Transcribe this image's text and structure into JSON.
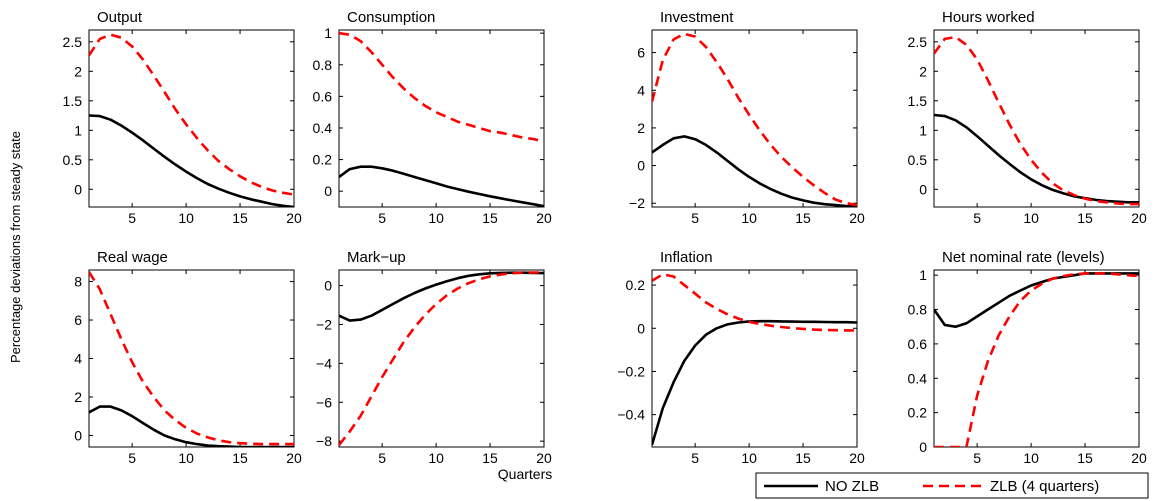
{
  "figure": {
    "ylabel": "Percentage deviations from steady state",
    "xlabel": "Quarters",
    "legend": {
      "placement": "bottom-right",
      "entries": [
        "NO ZLB",
        "ZLB (4 quarters)"
      ]
    }
  },
  "colors": {
    "no_zlb": "#000000",
    "zlb": "#ff0000"
  },
  "chart_data": [
    {
      "type": "line",
      "title": "Output",
      "xlim": [
        1,
        20
      ],
      "ylim": [
        -0.3,
        2.7
      ],
      "xticks": [
        5,
        10,
        15,
        20
      ],
      "yticks": [
        0,
        0.5,
        1,
        1.5,
        2,
        2.5
      ],
      "ytick_labels": [
        "0",
        "0.5",
        "1",
        "1.5",
        "2",
        "2.5"
      ],
      "x": [
        1,
        2,
        3,
        4,
        5,
        6,
        7,
        8,
        9,
        10,
        11,
        12,
        13,
        14,
        15,
        16,
        17,
        18,
        19,
        20
      ],
      "series": [
        {
          "name": "NO ZLB",
          "values": [
            1.25,
            1.24,
            1.18,
            1.08,
            0.96,
            0.83,
            0.69,
            0.55,
            0.42,
            0.3,
            0.19,
            0.09,
            0.01,
            -0.06,
            -0.12,
            -0.17,
            -0.21,
            -0.25,
            -0.28,
            -0.3
          ]
        },
        {
          "name": "ZLB (4 quarters)",
          "values": [
            2.27,
            2.55,
            2.62,
            2.57,
            2.42,
            2.2,
            1.93,
            1.65,
            1.36,
            1.1,
            0.87,
            0.66,
            0.48,
            0.34,
            0.22,
            0.12,
            0.04,
            -0.02,
            -0.06,
            -0.09
          ]
        }
      ]
    },
    {
      "type": "line",
      "title": "Consumption",
      "xlim": [
        1,
        20
      ],
      "ylim": [
        -0.1,
        1.02
      ],
      "xticks": [
        5,
        10,
        15,
        20
      ],
      "yticks": [
        0,
        0.2,
        0.4,
        0.6,
        0.8,
        1
      ],
      "ytick_labels": [
        "0",
        "0.2",
        "0.4",
        "0.6",
        "0.8",
        "1"
      ],
      "x": [
        1,
        2,
        3,
        4,
        5,
        6,
        7,
        8,
        9,
        10,
        11,
        12,
        13,
        14,
        15,
        16,
        17,
        18,
        19,
        20
      ],
      "series": [
        {
          "name": "NO ZLB",
          "values": [
            0.09,
            0.14,
            0.155,
            0.155,
            0.145,
            0.13,
            0.11,
            0.09,
            0.07,
            0.05,
            0.03,
            0.013,
            -0.003,
            -0.018,
            -0.032,
            -0.045,
            -0.058,
            -0.07,
            -0.082,
            -0.095
          ]
        },
        {
          "name": "ZLB (4 quarters)",
          "values": [
            1.0,
            0.99,
            0.95,
            0.88,
            0.8,
            0.72,
            0.65,
            0.59,
            0.54,
            0.5,
            0.47,
            0.44,
            0.42,
            0.4,
            0.38,
            0.37,
            0.355,
            0.34,
            0.33,
            0.315
          ]
        }
      ]
    },
    {
      "type": "line",
      "title": "Investment",
      "xlim": [
        1,
        20
      ],
      "ylim": [
        -2.2,
        7.2
      ],
      "xticks": [
        5,
        10,
        15,
        20
      ],
      "yticks": [
        -2,
        0,
        2,
        4,
        6
      ],
      "ytick_labels": [
        "−2",
        "0",
        "2",
        "4",
        "6"
      ],
      "x": [
        1,
        2,
        3,
        4,
        5,
        6,
        7,
        8,
        9,
        10,
        11,
        12,
        13,
        14,
        15,
        16,
        17,
        18,
        19,
        20
      ],
      "series": [
        {
          "name": "NO ZLB",
          "values": [
            0.7,
            1.1,
            1.45,
            1.55,
            1.4,
            1.1,
            0.7,
            0.25,
            -0.2,
            -0.6,
            -0.95,
            -1.25,
            -1.5,
            -1.7,
            -1.85,
            -1.97,
            -2.05,
            -2.1,
            -2.15,
            -2.18
          ]
        },
        {
          "name": "ZLB (4 quarters)",
          "values": [
            3.4,
            5.6,
            6.7,
            7.0,
            6.85,
            6.3,
            5.5,
            4.6,
            3.6,
            2.7,
            1.85,
            1.1,
            0.45,
            -0.1,
            -0.6,
            -1.05,
            -1.45,
            -1.8,
            -2.0,
            -2.1
          ]
        }
      ]
    },
    {
      "type": "line",
      "title": "Hours worked",
      "xlim": [
        1,
        20
      ],
      "ylim": [
        -0.3,
        2.7
      ],
      "xticks": [
        5,
        10,
        15,
        20
      ],
      "yticks": [
        0,
        0.5,
        1,
        1.5,
        2,
        2.5
      ],
      "ytick_labels": [
        "0",
        "0.5",
        "1",
        "1.5",
        "2",
        "2.5"
      ],
      "x": [
        1,
        2,
        3,
        4,
        5,
        6,
        7,
        8,
        9,
        10,
        11,
        12,
        13,
        14,
        15,
        16,
        17,
        18,
        19,
        20
      ],
      "series": [
        {
          "name": "NO ZLB",
          "values": [
            1.26,
            1.24,
            1.17,
            1.05,
            0.9,
            0.74,
            0.58,
            0.43,
            0.29,
            0.17,
            0.07,
            -0.01,
            -0.07,
            -0.12,
            -0.15,
            -0.18,
            -0.2,
            -0.21,
            -0.22,
            -0.22
          ]
        },
        {
          "name": "ZLB (4 quarters)",
          "values": [
            2.3,
            2.55,
            2.58,
            2.45,
            2.2,
            1.85,
            1.47,
            1.1,
            0.77,
            0.5,
            0.28,
            0.1,
            -0.02,
            -0.1,
            -0.16,
            -0.2,
            -0.22,
            -0.24,
            -0.25,
            -0.25
          ]
        }
      ]
    },
    {
      "type": "line",
      "title": "Real wage",
      "xlim": [
        1,
        20
      ],
      "ylim": [
        -0.6,
        8.6
      ],
      "xticks": [
        5,
        10,
        15,
        20
      ],
      "yticks": [
        0,
        2,
        4,
        6,
        8
      ],
      "ytick_labels": [
        "0",
        "2",
        "4",
        "6",
        "8"
      ],
      "x": [
        1,
        2,
        3,
        4,
        5,
        6,
        7,
        8,
        9,
        10,
        11,
        12,
        13,
        14,
        15,
        16,
        17,
        18,
        19,
        20
      ],
      "series": [
        {
          "name": "NO ZLB",
          "values": [
            1.2,
            1.5,
            1.5,
            1.3,
            1.0,
            0.65,
            0.3,
            0.0,
            -0.2,
            -0.35,
            -0.45,
            -0.52,
            -0.56,
            -0.58,
            -0.6,
            -0.6,
            -0.6,
            -0.6,
            -0.6,
            -0.6
          ]
        },
        {
          "name": "ZLB (4 quarters)",
          "values": [
            8.5,
            7.6,
            6.3,
            5.0,
            3.8,
            2.8,
            2.0,
            1.3,
            0.8,
            0.4,
            0.1,
            -0.1,
            -0.25,
            -0.35,
            -0.4,
            -0.43,
            -0.45,
            -0.45,
            -0.45,
            -0.45
          ]
        }
      ]
    },
    {
      "type": "line",
      "title": "Mark−up",
      "xlim": [
        1,
        20
      ],
      "ylim": [
        -8.3,
        0.8
      ],
      "xticks": [
        5,
        10,
        15,
        20
      ],
      "yticks": [
        -8,
        -6,
        -4,
        -2,
        0
      ],
      "ytick_labels": [
        "−8",
        "−6",
        "−4",
        "−2",
        "0"
      ],
      "x": [
        1,
        2,
        3,
        4,
        5,
        6,
        7,
        8,
        9,
        10,
        11,
        12,
        13,
        14,
        15,
        16,
        17,
        18,
        19,
        20
      ],
      "series": [
        {
          "name": "NO ZLB",
          "values": [
            -1.55,
            -1.8,
            -1.75,
            -1.55,
            -1.25,
            -0.95,
            -0.65,
            -0.38,
            -0.15,
            0.05,
            0.22,
            0.38,
            0.5,
            0.58,
            0.63,
            0.65,
            0.66,
            0.66,
            0.65,
            0.64
          ]
        },
        {
          "name": "ZLB (4 quarters)",
          "values": [
            -8.2,
            -7.5,
            -6.7,
            -5.7,
            -4.7,
            -3.8,
            -2.9,
            -2.15,
            -1.5,
            -0.95,
            -0.5,
            -0.15,
            0.12,
            0.32,
            0.47,
            0.57,
            0.63,
            0.66,
            0.67,
            0.67
          ]
        }
      ]
    },
    {
      "type": "line",
      "title": "Inflation",
      "xlim": [
        1,
        20
      ],
      "ylim": [
        -0.55,
        0.27
      ],
      "xticks": [
        5,
        10,
        15,
        20
      ],
      "yticks": [
        -0.4,
        -0.2,
        0,
        0.2
      ],
      "ytick_labels": [
        "−0.4",
        "−0.2",
        "0",
        "0.2"
      ],
      "x": [
        1,
        2,
        3,
        4,
        5,
        6,
        7,
        8,
        9,
        10,
        11,
        12,
        13,
        14,
        15,
        16,
        17,
        18,
        19,
        20
      ],
      "series": [
        {
          "name": "NO ZLB",
          "values": [
            -0.54,
            -0.37,
            -0.25,
            -0.15,
            -0.08,
            -0.03,
            0.0,
            0.018,
            0.027,
            0.032,
            0.033,
            0.033,
            0.032,
            0.031,
            0.03,
            0.03,
            0.029,
            0.028,
            0.028,
            0.027
          ]
        },
        {
          "name": "ZLB (4 quarters)",
          "values": [
            0.22,
            0.25,
            0.24,
            0.2,
            0.16,
            0.12,
            0.09,
            0.065,
            0.045,
            0.03,
            0.02,
            0.012,
            0.006,
            0.001,
            -0.003,
            -0.006,
            -0.008,
            -0.009,
            -0.01,
            -0.01
          ]
        }
      ]
    },
    {
      "type": "line",
      "title": "Net nominal rate (levels)",
      "xlim": [
        1,
        20
      ],
      "ylim": [
        0,
        1.03
      ],
      "xticks": [
        5,
        10,
        15,
        20
      ],
      "yticks": [
        0,
        0.2,
        0.4,
        0.6,
        0.8,
        1
      ],
      "ytick_labels": [
        "0",
        "0.2",
        "0.4",
        "0.6",
        "0.8",
        "1"
      ],
      "x": [
        1,
        2,
        3,
        4,
        5,
        6,
        7,
        8,
        9,
        10,
        11,
        12,
        13,
        14,
        15,
        16,
        17,
        18,
        19,
        20
      ],
      "series": [
        {
          "name": "NO ZLB",
          "values": [
            0.8,
            0.71,
            0.7,
            0.72,
            0.76,
            0.8,
            0.84,
            0.88,
            0.91,
            0.94,
            0.96,
            0.98,
            0.99,
            1.0,
            1.01,
            1.01,
            1.01,
            1.01,
            1.01,
            1.01
          ]
        },
        {
          "name": "ZLB (4 quarters)",
          "values": [
            0,
            0,
            0,
            0,
            0.3,
            0.5,
            0.65,
            0.76,
            0.85,
            0.91,
            0.95,
            0.98,
            0.995,
            1.005,
            1.01,
            1.01,
            1.01,
            1.005,
            1.0,
            0.995
          ]
        }
      ]
    }
  ]
}
